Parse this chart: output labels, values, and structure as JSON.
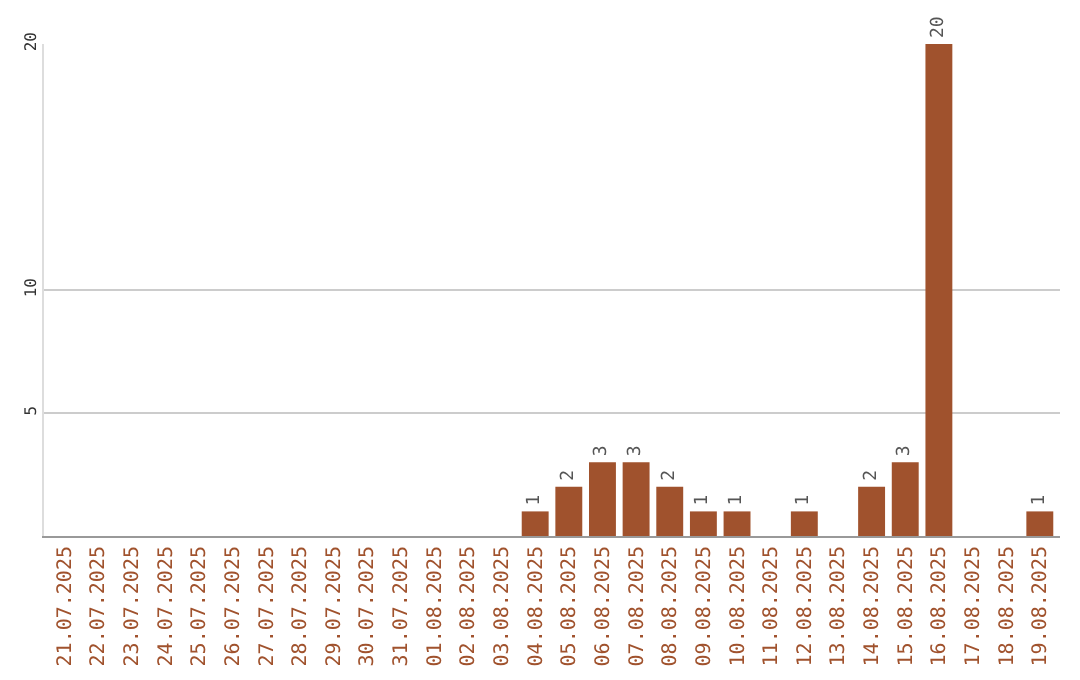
{
  "chart_data": {
    "type": "bar",
    "categories": [
      "21.07.2025",
      "22.07.2025",
      "23.07.2025",
      "24.07.2025",
      "25.07.2025",
      "26.07.2025",
      "27.07.2025",
      "28.07.2025",
      "29.07.2025",
      "30.07.2025",
      "31.07.2025",
      "01.08.2025",
      "02.08.2025",
      "03.08.2025",
      "04.08.2025",
      "05.08.2025",
      "06.08.2025",
      "07.08.2025",
      "08.08.2025",
      "09.08.2025",
      "10.08.2025",
      "11.08.2025",
      "12.08.2025",
      "13.08.2025",
      "14.08.2025",
      "15.08.2025",
      "16.08.2025",
      "17.08.2025",
      "18.08.2025",
      "19.08.2025"
    ],
    "values": [
      0,
      0,
      0,
      0,
      0,
      0,
      0,
      0,
      0,
      0,
      0,
      0,
      0,
      0,
      1,
      2,
      3,
      3,
      2,
      1,
      1,
      0,
      1,
      0,
      2,
      3,
      20,
      0,
      0,
      1
    ],
    "value_labels": [
      null,
      null,
      null,
      null,
      null,
      null,
      null,
      null,
      null,
      null,
      null,
      null,
      null,
      null,
      "1",
      "2",
      "3",
      "3",
      "2",
      "1",
      "1",
      null,
      "1",
      null,
      "2",
      "3",
      "20",
      null,
      null,
      "1"
    ],
    "color": "#a0522d",
    "ylim": [
      0,
      20
    ],
    "yticks": [
      5,
      10,
      20
    ],
    "grid": "y",
    "legend": false
  }
}
